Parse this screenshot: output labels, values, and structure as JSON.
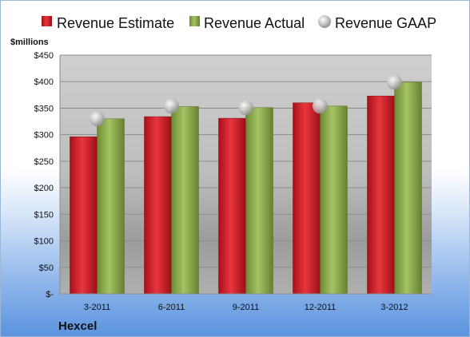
{
  "chart_data": {
    "type": "bar",
    "categories": [
      "3-2011",
      "6-2011",
      "9-2011",
      "12-2011",
      "3-2012"
    ],
    "series": [
      {
        "name": "Revenue Estimate",
        "type": "bar",
        "color": "#d6202a",
        "values": [
          296,
          334,
          331,
          360,
          373
        ]
      },
      {
        "name": "Revenue Actual",
        "type": "bar",
        "color": "#8faf4c",
        "values": [
          330,
          353,
          351,
          354,
          399
        ]
      },
      {
        "name": "Revenue GAAP",
        "type": "marker",
        "color": "#c9c9c9",
        "values": [
          330,
          354,
          351,
          354,
          399
        ]
      }
    ],
    "ylabel": "$millions",
    "ylim": [
      0,
      450
    ],
    "yticks": [
      0,
      50,
      100,
      150,
      200,
      250,
      300,
      350,
      400,
      450
    ],
    "ytick_labels": [
      "$-",
      "$50",
      "$100",
      "$150",
      "$200",
      "$250",
      "$300",
      "$350",
      "$400",
      "$450"
    ],
    "legend_position": "top",
    "grid": true,
    "company": "Hexcel"
  }
}
